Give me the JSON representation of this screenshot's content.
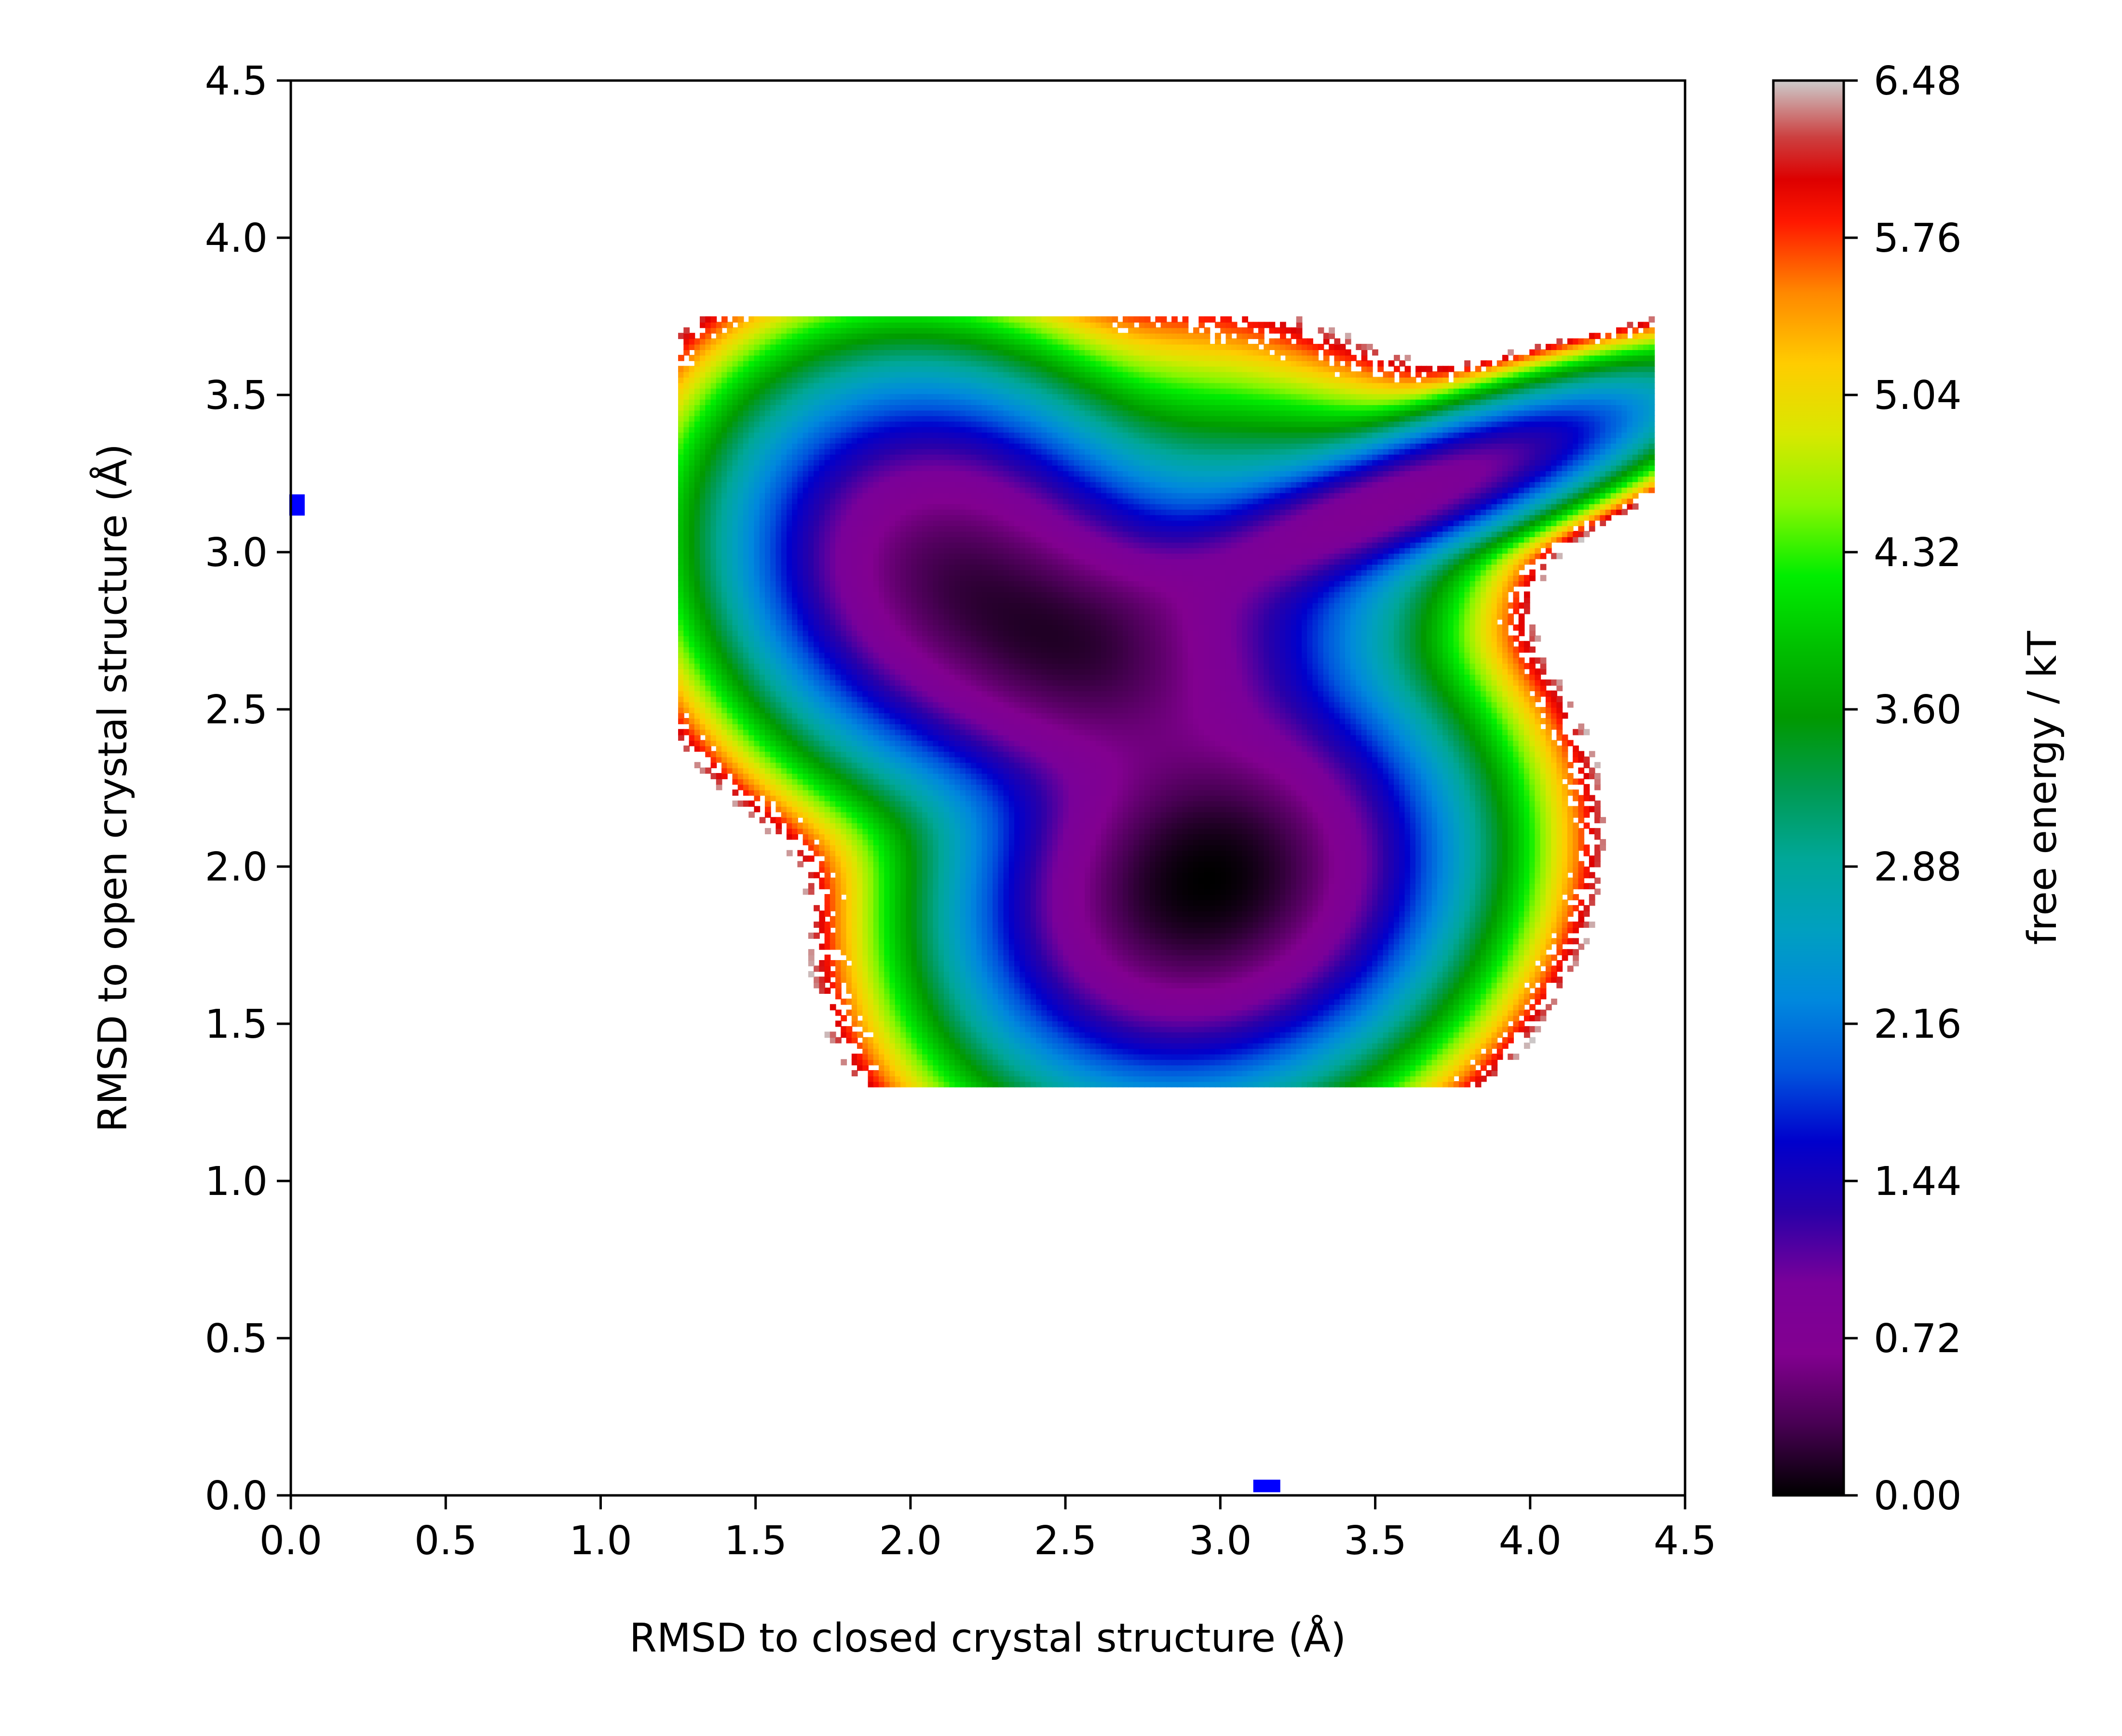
{
  "chart_data": {
    "type": "heatmap",
    "subtype": "filled-contour free energy landscape",
    "title": "",
    "xlabel": "RMSD to closed crystal structure (Å)",
    "ylabel": "RMSD to open crystal structure (Å)",
    "xlim": [
      0.0,
      4.5
    ],
    "ylim": [
      0.0,
      4.5
    ],
    "xticks": [
      "0.0",
      "0.5",
      "1.0",
      "1.5",
      "2.0",
      "2.5",
      "3.0",
      "3.5",
      "4.0",
      "4.5"
    ],
    "yticks": [
      "0.0",
      "0.5",
      "1.0",
      "1.5",
      "2.0",
      "2.5",
      "3.0",
      "3.5",
      "4.0",
      "4.5"
    ],
    "grid": false,
    "colorbar": {
      "label": "free energy / kT",
      "range": [
        0.0,
        6.48
      ],
      "ticks": [
        "0.00",
        "0.72",
        "1.44",
        "2.16",
        "2.88",
        "3.60",
        "4.32",
        "5.04",
        "5.76",
        "6.48"
      ],
      "colormap": "nipy_spectral",
      "color_stops": [
        [
          0.0,
          "#000000"
        ],
        [
          0.05,
          "#470052"
        ],
        [
          0.1,
          "#820090"
        ],
        [
          0.15,
          "#7a0099"
        ],
        [
          0.2,
          "#2a00a8"
        ],
        [
          0.25,
          "#0000cc"
        ],
        [
          0.3,
          "#0055dd"
        ],
        [
          0.35,
          "#0088dd"
        ],
        [
          0.4,
          "#00a0c0"
        ],
        [
          0.45,
          "#00a798"
        ],
        [
          0.5,
          "#009a50"
        ],
        [
          0.55,
          "#009900"
        ],
        [
          0.6,
          "#00c000"
        ],
        [
          0.65,
          "#00ee00"
        ],
        [
          0.7,
          "#88f600"
        ],
        [
          0.75,
          "#d8e800"
        ],
        [
          0.8,
          "#ffcc00"
        ],
        [
          0.85,
          "#ff8800"
        ],
        [
          0.9,
          "#ff1800"
        ],
        [
          0.93,
          "#dd0000"
        ],
        [
          0.96,
          "#cc4040"
        ],
        [
          1.0,
          "#cccccc"
        ]
      ]
    },
    "minima": [
      {
        "x": 2.95,
        "y": 1.93,
        "free_energy": 0.0
      },
      {
        "x": 2.12,
        "y": 2.92,
        "free_energy": 0.5
      },
      {
        "x": 2.58,
        "y": 2.62,
        "free_energy": 1.3
      },
      {
        "x": 3.62,
        "y": 3.18,
        "free_energy": 1.8
      }
    ],
    "markers": [
      {
        "label": "open crystal structure",
        "x": 0.02,
        "y": 3.15,
        "color": "#0000ff"
      },
      {
        "label": "closed crystal structure",
        "x": 3.15,
        "y": 0.01,
        "color": "#0000ff"
      }
    ]
  }
}
